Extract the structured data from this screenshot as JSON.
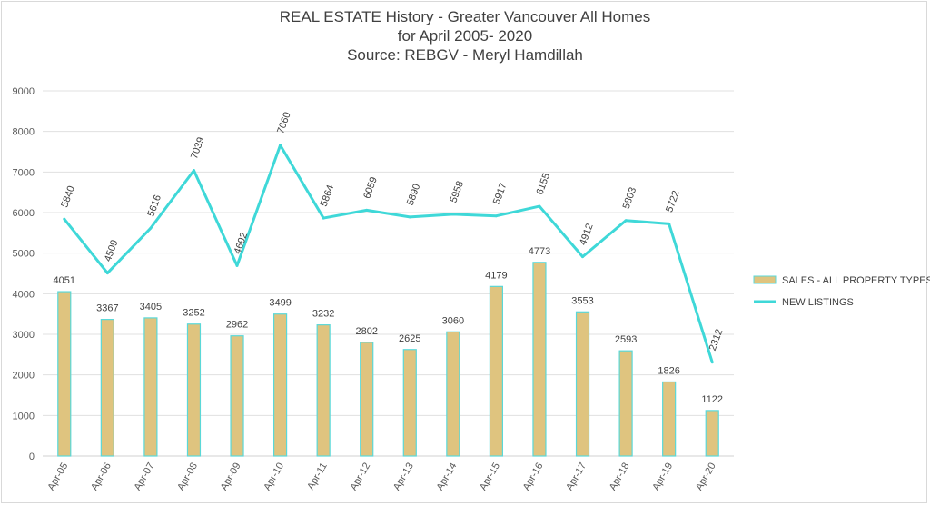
{
  "chart_data": {
    "type": "bar",
    "title_lines": [
      "REAL ESTATE History - Greater Vancouver All Homes",
      "for April 2005- 2020",
      "Source: REBGV  - Meryl Hamdillah"
    ],
    "categories": [
      "Apr-05",
      "Apr-06",
      "Apr-07",
      "Apr-08",
      "Apr-09",
      "Apr-10",
      "Apr-11",
      "Apr-12",
      "Apr-13",
      "Apr-14",
      "Apr-15",
      "Apr-16",
      "Apr-17",
      "Apr-18",
      "Apr-19",
      "Apr-20"
    ],
    "series": [
      {
        "name": "SALES - ALL PROPERTY TYPES",
        "kind": "bar",
        "color": "#dfc47f",
        "stroke": "#5ad8d8",
        "values": [
          4051,
          3367,
          3405,
          3252,
          2962,
          3499,
          3232,
          2802,
          2625,
          3060,
          4179,
          4773,
          3553,
          2593,
          1826,
          1122
        ]
      },
      {
        "name": "NEW LISTINGS",
        "kind": "line",
        "color": "#3fd8d8",
        "values": [
          5840,
          4509,
          5616,
          7039,
          4692,
          7660,
          5864,
          6059,
          5890,
          5958,
          5917,
          6155,
          4912,
          5803,
          5722,
          2312
        ]
      }
    ],
    "ylim": [
      0,
      9000
    ],
    "yticks": [
      0,
      1000,
      2000,
      3000,
      4000,
      5000,
      6000,
      7000,
      8000,
      9000
    ],
    "grid": true,
    "legend_position": "right"
  }
}
